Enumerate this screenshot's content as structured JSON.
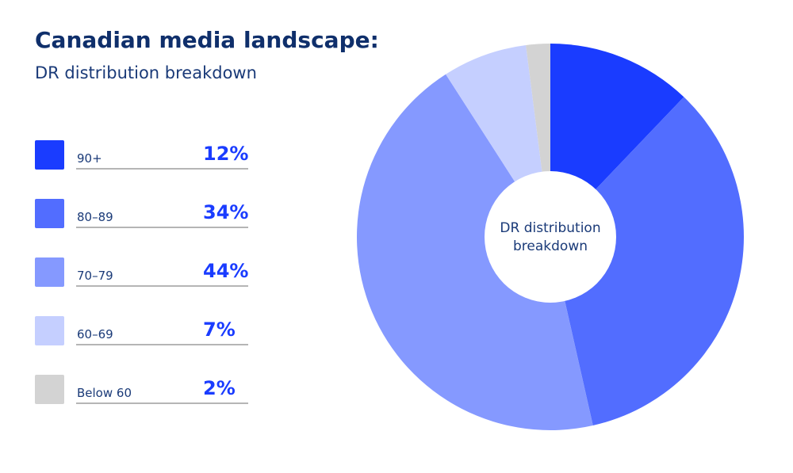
{
  "header": {
    "title": "Canadian media landscape:",
    "subtitle": "DR distribution breakdown"
  },
  "legend": [
    {
      "label": "90+",
      "value": "12%"
    },
    {
      "label": "80–89",
      "value": "34%"
    },
    {
      "label": "70–79",
      "value": "44%"
    },
    {
      "label": "60–69",
      "value": "7%"
    },
    {
      "label": "Below 60",
      "value": "2%"
    }
  ],
  "chart_data": {
    "type": "pie",
    "variant": "donut",
    "title": "Canadian media landscape: DR distribution breakdown",
    "center_label": [
      "DR distribution",
      "breakdown"
    ],
    "categories": [
      "90+",
      "80–89",
      "70–79",
      "60–69",
      "Below 60"
    ],
    "values": [
      12,
      34,
      44,
      7,
      2
    ],
    "unit": "%",
    "colors": [
      "#1a3cff",
      "#526dff",
      "#8599ff",
      "#c5cfff",
      "#d3d3d3"
    ],
    "start_angle": "12 o'clock",
    "direction": "clockwise",
    "legend_position": "left"
  }
}
